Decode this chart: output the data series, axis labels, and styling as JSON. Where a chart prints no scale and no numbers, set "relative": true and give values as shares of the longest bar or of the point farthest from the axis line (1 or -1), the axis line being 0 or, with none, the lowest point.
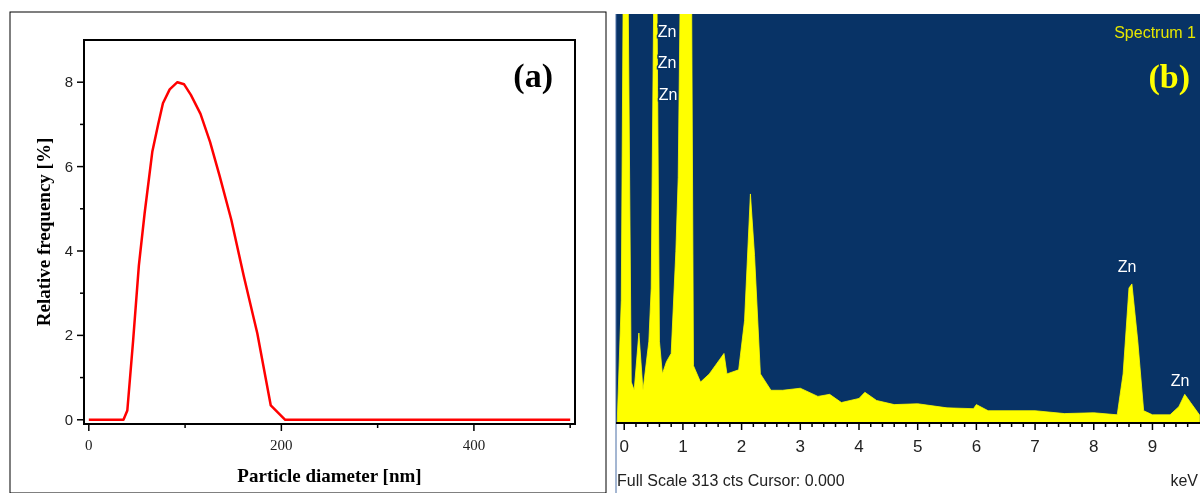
{
  "chart_data": [
    {
      "type": "line",
      "title": "(a)",
      "xlabel": "Particle diameter [nm]",
      "ylabel": "Relative frequency [%]",
      "xlim": [
        -5,
        505
      ],
      "ylim": [
        -0.1,
        9
      ],
      "xticks": [
        0,
        {
          "value": 100,
          "label": null
        },
        200,
        {
          "value": 300,
          "label": null
        },
        400,
        {
          "value": 500,
          "label": null
        }
      ],
      "yticks": [
        0,
        {
          "value": 1,
          "label": null
        },
        2,
        {
          "value": 3,
          "label": null
        },
        4,
        {
          "value": 5,
          "label": null
        },
        6,
        {
          "value": 7,
          "label": null
        },
        8
      ],
      "grid": false,
      "series": [
        {
          "color": "#ff0000",
          "x": [
            0,
            36,
            40,
            46,
            52,
            58,
            66,
            72,
            77,
            84,
            92,
            99,
            106,
            116,
            126,
            136,
            148,
            161,
            175,
            189,
            204,
            500
          ],
          "values": [
            0,
            0,
            0.22,
            1.87,
            3.66,
            4.9,
            6.36,
            7,
            7.5,
            7.83,
            8,
            7.95,
            7.7,
            7.25,
            6.58,
            5.77,
            4.74,
            3.4,
            2.05,
            0.34,
            0,
            0
          ]
        }
      ]
    },
    {
      "type": "area",
      "title": "(b)",
      "xlabel": "keV",
      "relative": true,
      "xlim": [
        -0.14,
        9.81
      ],
      "xticks": [
        0,
        {
          "value": 0.2,
          "label": null
        },
        {
          "value": 0.4,
          "label": null
        },
        {
          "value": 0.6,
          "label": null
        },
        {
          "value": 0.8,
          "label": null
        },
        1,
        {
          "value": 1.2,
          "label": null
        },
        {
          "value": 1.4,
          "label": null
        },
        {
          "value": 1.6,
          "label": null
        },
        {
          "value": 1.8,
          "label": null
        },
        2,
        {
          "value": 2.2,
          "label": null
        },
        {
          "value": 2.4,
          "label": null
        },
        {
          "value": 2.6,
          "label": null
        },
        {
          "value": 2.8,
          "label": null
        },
        3,
        {
          "value": 3.2,
          "label": null
        },
        {
          "value": 3.4,
          "label": null
        },
        {
          "value": 3.6,
          "label": null
        },
        {
          "value": 3.8,
          "label": null
        },
        4,
        {
          "value": 4.2,
          "label": null
        },
        {
          "value": 4.4,
          "label": null
        },
        {
          "value": 4.6,
          "label": null
        },
        {
          "value": 4.8,
          "label": null
        },
        5,
        {
          "value": 5.2,
          "label": null
        },
        {
          "value": 5.4,
          "label": null
        },
        {
          "value": 5.6,
          "label": null
        },
        {
          "value": 5.8,
          "label": null
        },
        6,
        {
          "value": 6.2,
          "label": null
        },
        {
          "value": 6.4,
          "label": null
        },
        {
          "value": 6.6,
          "label": null
        },
        {
          "value": 6.8,
          "label": null
        },
        7,
        {
          "value": 7.2,
          "label": null
        },
        {
          "value": 7.4,
          "label": null
        },
        {
          "value": 7.6,
          "label": null
        },
        {
          "value": 7.8,
          "label": null
        },
        8,
        {
          "value": 8.2,
          "label": null
        },
        {
          "value": 8.4,
          "label": null
        },
        {
          "value": 8.6,
          "label": null
        },
        {
          "value": 8.8,
          "label": null
        },
        9,
        {
          "value": 9.2,
          "label": null
        },
        {
          "value": 9.4,
          "label": null
        },
        {
          "value": 9.6,
          "label": null
        }
      ],
      "grid": false,
      "annotations": [
        "Spectrum 1",
        "Full Scale 313 cts Cursor: 0.000",
        "Zn",
        "Zn",
        "Zn",
        "Zn",
        "Zn"
      ],
      "series": [
        {
          "color": "#ffff00",
          "x": [
            -0.12,
            -0.05,
            -0.02,
            0.07,
            0.12,
            0.17,
            0.25,
            0.32,
            0.42,
            0.46,
            0.5,
            0.56,
            0.6,
            0.65,
            0.72,
            0.8,
            0.88,
            0.92,
            0.95,
            1.15,
            1.18,
            1.3,
            1.45,
            1.55,
            1.7,
            1.75,
            1.95,
            2.05,
            2.15,
            2.22,
            2.32,
            2.5,
            2.7,
            3.0,
            3.3,
            3.5,
            3.7,
            4.0,
            4.1,
            4.3,
            4.6,
            5.0,
            5.5,
            5.95,
            6.0,
            6.2,
            7.0,
            7.5,
            8.0,
            8.4,
            8.5,
            8.6,
            8.65,
            8.75,
            8.85,
            9.0,
            9.3,
            9.45,
            9.55,
            9.65,
            9.8
          ],
          "values": [
            0,
            0.3,
            1,
            1,
            0.1,
            0.08,
            0.22,
            0.08,
            0.2,
            0.33,
            1,
            1,
            0.2,
            0.12,
            0.15,
            0.17,
            0.42,
            0.6,
            1,
            1,
            0.14,
            0.1,
            0.12,
            0.14,
            0.17,
            0.12,
            0.13,
            0.25,
            0.56,
            0.41,
            0.12,
            0.08,
            0.08,
            0.085,
            0.065,
            0.07,
            0.05,
            0.06,
            0.075,
            0.055,
            0.045,
            0.047,
            0.037,
            0.035,
            0.045,
            0.03,
            0.03,
            0.023,
            0.025,
            0.02,
            0.12,
            0.33,
            0.34,
            0.2,
            0.03,
            0.02,
            0.02,
            0.04,
            0.07,
            0.05,
            0.02
          ]
        }
      ]
    }
  ]
}
